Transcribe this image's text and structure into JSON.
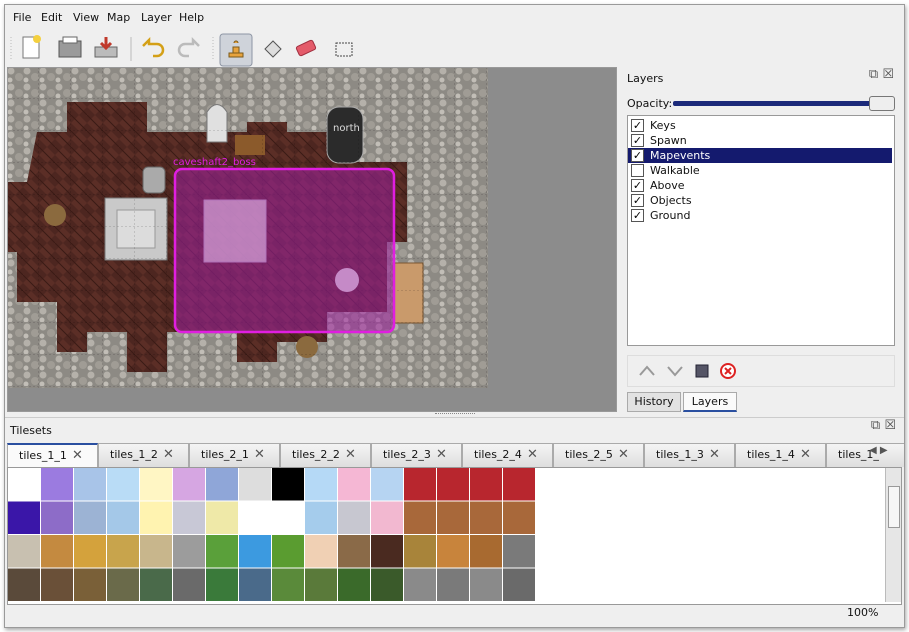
{
  "menu": [
    "File",
    "Edit",
    "View",
    "Map",
    "Layer",
    "Help"
  ],
  "map": {
    "labels": [
      "north",
      "caveshaft2_boss"
    ]
  },
  "layers_panel": {
    "title": "Layers",
    "opacity_label": "Opacity:",
    "layers": [
      {
        "name": "Keys",
        "checked": true,
        "selected": false
      },
      {
        "name": "Spawn",
        "checked": true,
        "selected": false
      },
      {
        "name": "Mapevents",
        "checked": true,
        "selected": true
      },
      {
        "name": "Walkable",
        "checked": false,
        "selected": false
      },
      {
        "name": "Above",
        "checked": true,
        "selected": false
      },
      {
        "name": "Objects",
        "checked": true,
        "selected": false
      },
      {
        "name": "Ground",
        "checked": true,
        "selected": false
      }
    ],
    "tabs": [
      "History",
      "Layers"
    ],
    "active_tab": 1
  },
  "tilesets_panel": {
    "title": "Tilesets",
    "tabs": [
      "tiles_1_1",
      "tiles_1_2",
      "tiles_2_1",
      "tiles_2_2",
      "tiles_2_3",
      "tiles_2_4",
      "tiles_2_5",
      "tiles_1_3",
      "tiles_1_4",
      "tiles_1_"
    ],
    "active_tab": 0
  },
  "status": {
    "zoom": "100%"
  }
}
